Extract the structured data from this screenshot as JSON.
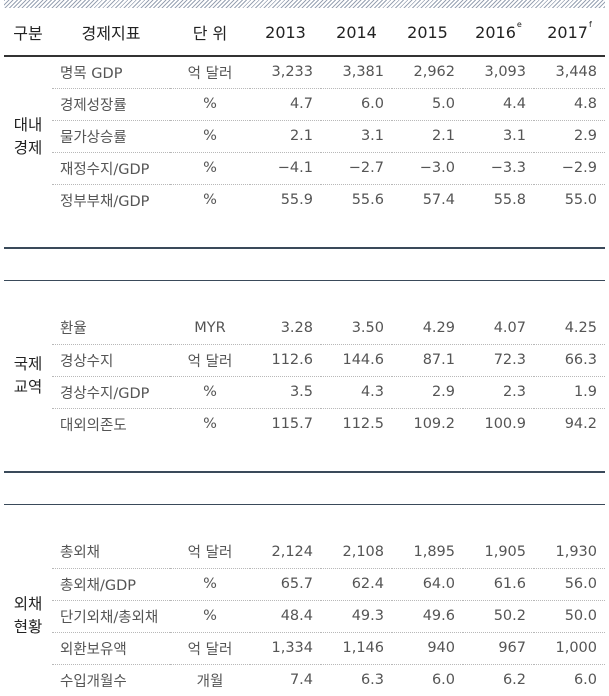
{
  "header": {
    "category": "구분",
    "indicator": "경제지표",
    "unit": "단 위",
    "years": [
      {
        "year": "2013",
        "sup": ""
      },
      {
        "year": "2014",
        "sup": ""
      },
      {
        "year": "2015",
        "sup": ""
      },
      {
        "year": "2016",
        "sup": "e"
      },
      {
        "year": "2017",
        "sup": "f"
      }
    ]
  },
  "groups": [
    {
      "label_line1": "대내",
      "label_line2": "경제",
      "rows": [
        {
          "indicator": "명목 GDP",
          "unit": "억 달러",
          "values": [
            "3,233",
            "3,381",
            "2,962",
            "3,093",
            "3,448"
          ]
        },
        {
          "indicator": "경제성장률",
          "unit": "%",
          "values": [
            "4.7",
            "6.0",
            "5.0",
            "4.4",
            "4.8"
          ]
        },
        {
          "indicator": "물가상승률",
          "unit": "%",
          "values": [
            "2.1",
            "3.1",
            "2.1",
            "3.1",
            "2.9"
          ]
        },
        {
          "indicator": "재정수지/GDP",
          "unit": "%",
          "values": [
            "−4.1",
            "−2.7",
            "−3.0",
            "−3.3",
            "−2.9"
          ]
        },
        {
          "indicator": "정부부채/GDP",
          "unit": "%",
          "values": [
            "55.9",
            "55.6",
            "57.4",
            "55.8",
            "55.0"
          ]
        }
      ]
    },
    {
      "label_line1": "국제",
      "label_line2": "교역",
      "rows": [
        {
          "indicator": "환율",
          "unit": "MYR",
          "values": [
            "3.28",
            "3.50",
            "4.29",
            "4.07",
            "4.25"
          ]
        },
        {
          "indicator": "경상수지",
          "unit": "억 달러",
          "values": [
            "112.6",
            "144.6",
            "87.1",
            "72.3",
            "66.3"
          ]
        },
        {
          "indicator": "경상수지/GDP",
          "unit": "%",
          "values": [
            "3.5",
            "4.3",
            "2.9",
            "2.3",
            "1.9"
          ]
        },
        {
          "indicator": "대외의존도",
          "unit": "%",
          "values": [
            "115.7",
            "112.5",
            "109.2",
            "100.9",
            "94.2"
          ]
        }
      ]
    },
    {
      "label_line1": "외채",
      "label_line2": "현황",
      "rows": [
        {
          "indicator": "총외채",
          "unit": "억 달러",
          "values": [
            "2,124",
            "2,108",
            "1,895",
            "1,905",
            "1,930"
          ]
        },
        {
          "indicator": "총외채/GDP",
          "unit": "%",
          "values": [
            "65.7",
            "62.4",
            "64.0",
            "61.6",
            "56.0"
          ]
        },
        {
          "indicator": "단기외채/총외채",
          "unit": "%",
          "values": [
            "48.4",
            "49.3",
            "49.6",
            "50.2",
            "50.0"
          ]
        },
        {
          "indicator": "외환보유액",
          "unit": "억 달러",
          "values": [
            "1,334",
            "1,146",
            "940",
            "967",
            "1,000"
          ]
        },
        {
          "indicator": "수입개월수",
          "unit": "개월",
          "values": [
            "7.4",
            "6.3",
            "6.0",
            "6.2",
            "6.0"
          ]
        }
      ]
    }
  ]
}
